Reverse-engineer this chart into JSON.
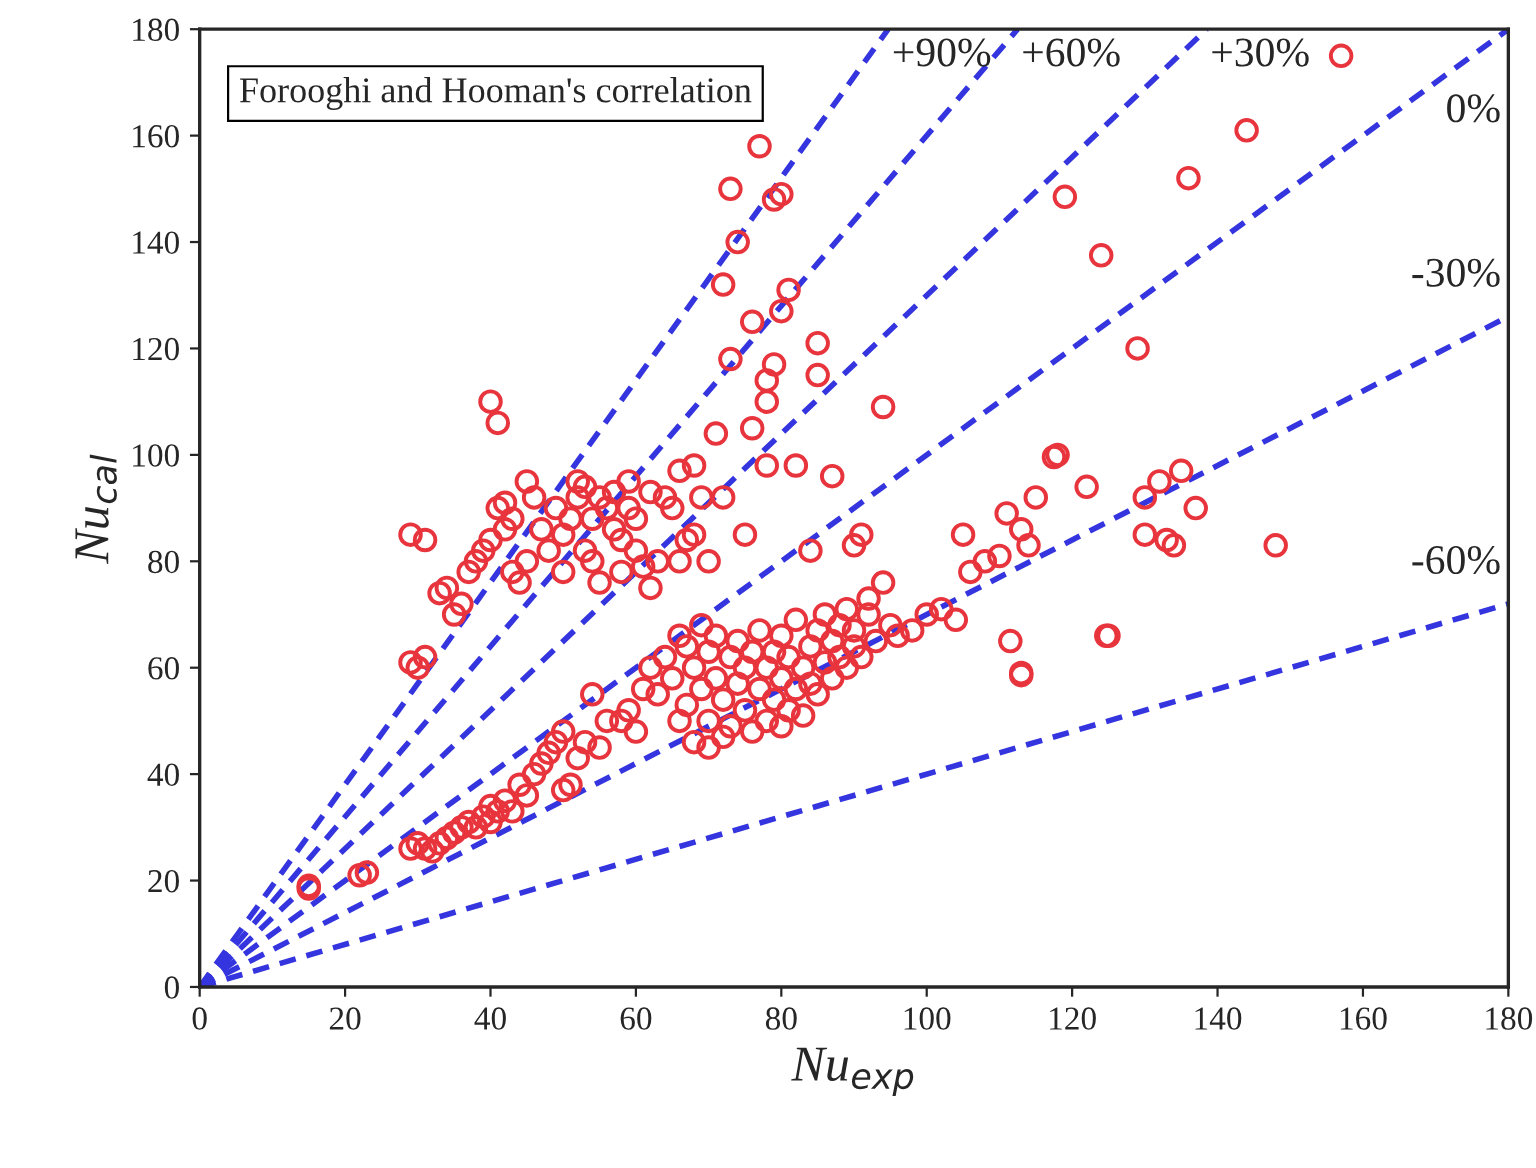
{
  "chart_data": {
    "type": "scatter",
    "xlabel": "Nu$_{exp}$",
    "ylabel": "Nu$_{cal}$",
    "annotations": [
      "Forooghi and Hooman's correlation"
    ],
    "xlim": [
      0,
      180
    ],
    "ylim": [
      0,
      180
    ],
    "xticks": [
      0,
      20,
      40,
      60,
      80,
      100,
      120,
      140,
      160,
      180
    ],
    "yticks": [
      0,
      20,
      40,
      60,
      80,
      100,
      120,
      140,
      160,
      180
    ],
    "grid": false,
    "legend": false,
    "series": [
      {
        "color": "#e8343c",
        "marker": "circle",
        "x": [
          15,
          15,
          22,
          23,
          29,
          30,
          31,
          32,
          33,
          34,
          35,
          36,
          37,
          38,
          39,
          40,
          41,
          40,
          42,
          43,
          44,
          45,
          46,
          47,
          48,
          49,
          50,
          50,
          51,
          52,
          53,
          54,
          55,
          56,
          29,
          29,
          30,
          31,
          31,
          34,
          33,
          35,
          36,
          37,
          38,
          39,
          40,
          40,
          41,
          41,
          42,
          42,
          43,
          43,
          44,
          45,
          45,
          46,
          47,
          48,
          49,
          50,
          50,
          51,
          52,
          52,
          53,
          53,
          54,
          54,
          55,
          55,
          56,
          57,
          57,
          58,
          58,
          59,
          59,
          60,
          60,
          61,
          62,
          62,
          63,
          64,
          65,
          66,
          66,
          67,
          68,
          68,
          69,
          70,
          71,
          72,
          72,
          73,
          73,
          74,
          75,
          76,
          76,
          77,
          78,
          78,
          79,
          79,
          80,
          80,
          81,
          82,
          78,
          84,
          85,
          85,
          87,
          90,
          91,
          94,
          58,
          59,
          60,
          61,
          62,
          63,
          64,
          65,
          66,
          66,
          67,
          67,
          68,
          68,
          69,
          69,
          70,
          70,
          70,
          71,
          71,
          72,
          72,
          73,
          73,
          74,
          74,
          75,
          75,
          76,
          76,
          77,
          77,
          78,
          78,
          79,
          79,
          80,
          80,
          80,
          81,
          81,
          82,
          82,
          83,
          83,
          84,
          84,
          85,
          85,
          86,
          86,
          87,
          87,
          88,
          88,
          89,
          89,
          90,
          90,
          91,
          92,
          92,
          93,
          94,
          95,
          96,
          98,
          100,
          102,
          104,
          105,
          106,
          108,
          110,
          111,
          111.5,
          113,
          113,
          113,
          114,
          115,
          117.5,
          118,
          119,
          122,
          124,
          124.7,
          125,
          129,
          130,
          130,
          132,
          133,
          134,
          135,
          136,
          137,
          144,
          148,
          157
        ],
        "values": [
          19,
          18.5,
          21,
          21.5,
          26,
          27,
          26,
          25.5,
          27,
          28,
          29,
          30,
          31,
          30,
          32,
          31,
          33,
          34,
          35,
          33,
          38,
          36,
          40,
          42,
          44,
          46,
          48,
          37,
          38,
          43,
          46,
          55,
          45,
          50,
          85,
          61,
          60,
          62,
          84,
          75,
          74,
          70,
          72,
          78,
          80,
          82,
          84,
          110,
          106,
          90,
          91,
          86,
          88,
          78,
          76,
          80,
          95,
          92,
          86,
          82,
          90,
          78,
          85,
          88,
          95,
          92,
          94,
          82,
          80,
          88,
          76,
          92,
          90,
          93,
          86,
          84,
          78,
          90,
          95,
          82,
          88,
          79,
          75,
          93,
          80,
          92,
          90,
          80,
          97,
          84,
          98,
          85,
          92,
          80,
          104,
          92,
          132,
          150,
          118,
          140,
          85,
          125,
          105,
          158,
          110,
          114,
          117,
          148,
          149,
          127,
          131,
          98,
          98,
          82,
          121,
          115,
          96,
          83,
          85,
          109,
          50,
          52,
          48,
          56,
          60,
          55,
          62,
          58,
          66,
          50,
          64,
          53,
          60,
          46,
          68,
          56,
          63,
          50,
          45,
          58,
          66,
          54,
          47,
          62,
          49,
          57,
          65,
          52,
          60,
          48,
          63,
          56,
          67,
          50,
          60,
          54,
          63,
          58,
          66,
          49,
          52,
          62,
          56,
          69,
          60,
          51,
          64,
          57,
          67,
          55,
          61,
          70,
          58,
          65,
          62,
          68,
          60,
          71,
          64,
          67,
          62,
          70,
          73,
          65,
          76,
          68,
          66,
          67,
          70,
          71,
          69,
          85,
          78,
          80,
          81,
          89,
          65,
          59,
          86,
          58.6,
          83,
          92,
          99.6,
          100,
          148.5,
          94,
          137.5,
          66,
          66,
          120,
          92,
          85,
          95,
          84,
          83,
          97,
          152,
          90,
          161,
          83,
          175
        ]
      },
      {
        "type": "line",
        "name": "+90%",
        "color": "#3535e0",
        "line_style": "dashed",
        "x": [
          0,
          94.7
        ],
        "values": [
          0,
          180
        ]
      },
      {
        "type": "line",
        "name": "+60%",
        "color": "#3535e0",
        "line_style": "dashed",
        "x": [
          0,
          112.5
        ],
        "values": [
          0,
          180
        ]
      },
      {
        "type": "line",
        "name": "+30%",
        "color": "#3535e0",
        "line_style": "dashed",
        "x": [
          0,
          138.5
        ],
        "values": [
          0,
          180
        ]
      },
      {
        "type": "line",
        "name": "0%",
        "color": "#3535e0",
        "line_style": "dashed",
        "x": [
          0,
          180
        ],
        "values": [
          0,
          180
        ]
      },
      {
        "type": "line",
        "name": "-30%",
        "color": "#3535e0",
        "line_style": "dashed",
        "x": [
          0,
          180
        ],
        "values": [
          0,
          126
        ]
      },
      {
        "type": "line",
        "name": "-60%",
        "color": "#3535e0",
        "line_style": "dashed",
        "x": [
          0,
          180
        ],
        "values": [
          0,
          72
        ]
      }
    ]
  }
}
